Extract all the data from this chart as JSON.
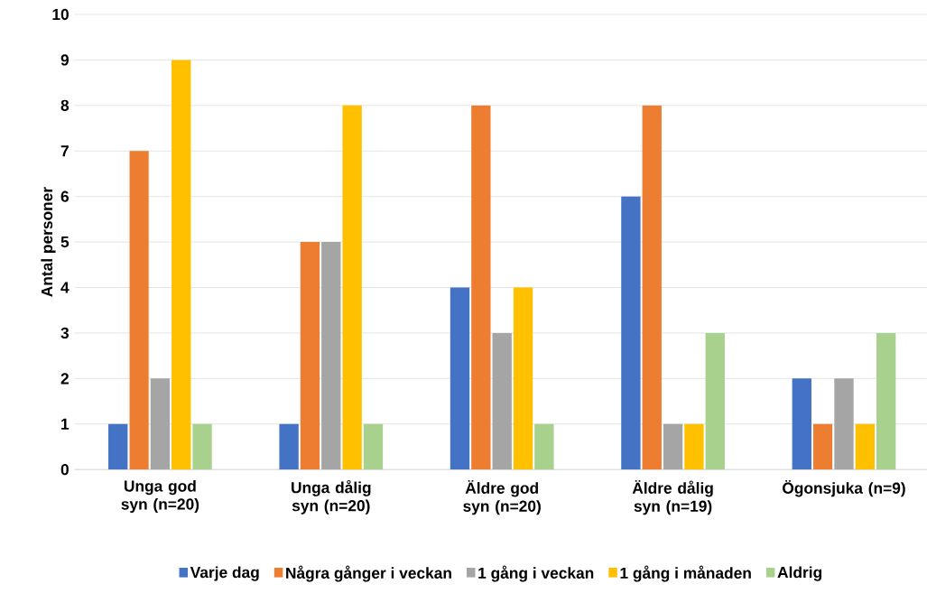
{
  "chart_data": {
    "type": "bar",
    "ylabel": "Antal personer",
    "categories": [
      "Unga god syn (n=20)",
      "Unga dålig syn (n=20)",
      "Äldre god syn (n=20)",
      "Äldre dålig syn (n=19)",
      "Ögonsjuka (n=9)"
    ],
    "series": [
      {
        "name": "Varje dag",
        "color": "#4472c4",
        "values": [
          1,
          1,
          4,
          6,
          2
        ]
      },
      {
        "name": "Några gånger i veckan",
        "color": "#ed7d31",
        "values": [
          7,
          5,
          8,
          8,
          1
        ]
      },
      {
        "name": "1 gång i veckan",
        "color": "#a5a5a5",
        "values": [
          2,
          5,
          3,
          1,
          2
        ]
      },
      {
        "name": "1 gång i månaden",
        "color": "#ffc000",
        "values": [
          9,
          8,
          4,
          1,
          1
        ]
      },
      {
        "name": "Aldrig",
        "color": "#a9d18e",
        "values": [
          1,
          1,
          1,
          3,
          3
        ]
      }
    ],
    "ylim": [
      0,
      10
    ],
    "yticks": [
      0,
      1,
      2,
      3,
      4,
      5,
      6,
      7,
      8,
      9,
      10
    ],
    "grid": "y",
    "legend": "bottom"
  }
}
